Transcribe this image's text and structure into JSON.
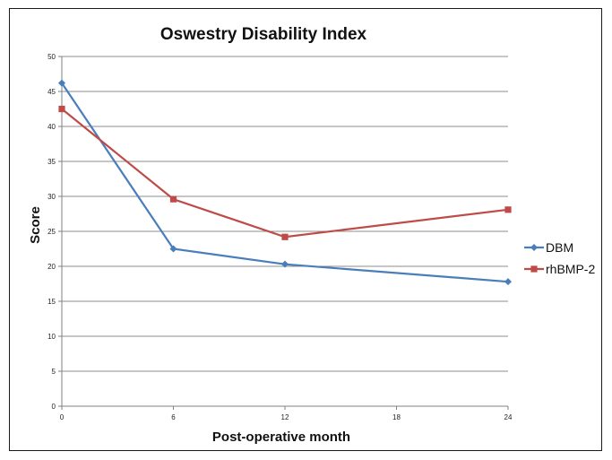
{
  "chart_data": {
    "type": "line",
    "title": "Oswestry Disability Index",
    "xlabel": "Post-operative month",
    "ylabel": "Score",
    "x_ticks": [
      0,
      6,
      12,
      18,
      24
    ],
    "xlim": [
      0,
      24
    ],
    "ylim": [
      0,
      50
    ],
    "y_ticks": [
      0,
      5,
      10,
      15,
      20,
      25,
      30,
      35,
      40,
      45,
      50
    ],
    "grid": "horizontal",
    "legend_position": "right",
    "series": [
      {
        "name": "DBM",
        "color": "#4a7ebb",
        "marker": "diamond",
        "x": [
          0,
          6,
          12,
          24
        ],
        "values": [
          46.2,
          22.5,
          20.3,
          17.8
        ]
      },
      {
        "name": "rhBMP-2",
        "color": "#be4b48",
        "marker": "square",
        "x": [
          0,
          6,
          12,
          24
        ],
        "values": [
          42.5,
          29.6,
          24.2,
          28.1
        ]
      }
    ]
  }
}
